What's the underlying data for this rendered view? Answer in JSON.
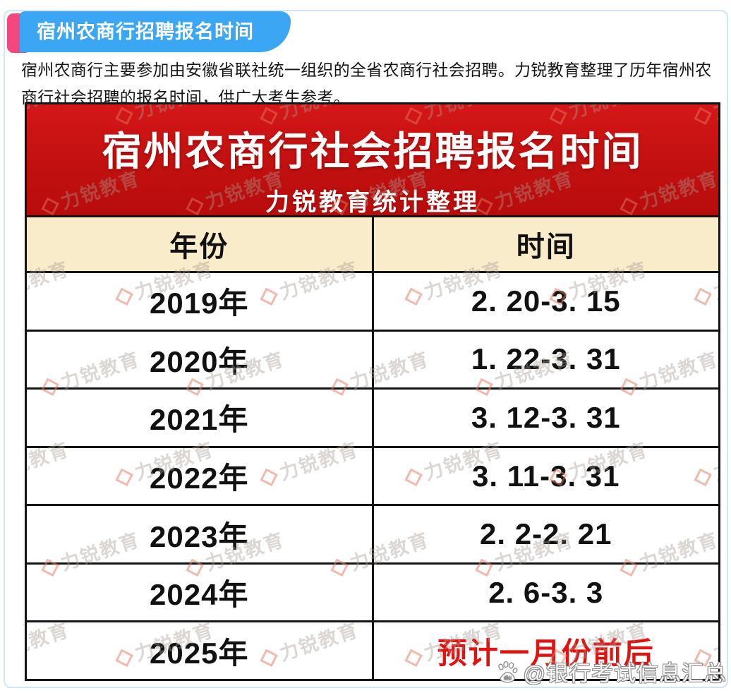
{
  "page": {
    "border_color": "#cfe6f8",
    "background": "#ffffff"
  },
  "badge": {
    "label": "宿州农商行招聘报名时间",
    "blue_color": "#3ba6f3",
    "pink_color": "#f5477e"
  },
  "intro": "宿州农商行主要参加由安徽省联社统一组织的全省农商行社会招聘。力锐教育整理了历年宿州农商行社会招聘的报名时间，供广大考生参考。",
  "poster": {
    "title": "宿州农商行社会招聘报名时间",
    "subtitle": "力锐教育统计整理",
    "header_bg": "#c21010",
    "header_row_bg": "#f9eccb",
    "highlight_color": "#e11310",
    "columns": [
      "年份",
      "时间"
    ],
    "rows": [
      {
        "year": "2019年",
        "time": "2. 20-3. 15",
        "highlight": false
      },
      {
        "year": "2020年",
        "time": "1. 22-3. 31",
        "highlight": false
      },
      {
        "year": "2021年",
        "time": "3. 12-3. 31",
        "highlight": false
      },
      {
        "year": "2022年",
        "time": "3. 11-3. 31",
        "highlight": false
      },
      {
        "year": "2023年",
        "time": "2. 2-2. 21",
        "highlight": false
      },
      {
        "year": "2024年",
        "time": "2. 6-3. 3",
        "highlight": false
      },
      {
        "year": "2025年",
        "time": "预计一月份前后",
        "highlight": true
      }
    ],
    "watermark_text": "力锐教育",
    "bottom_watermark": "@银行考试信息汇总"
  }
}
